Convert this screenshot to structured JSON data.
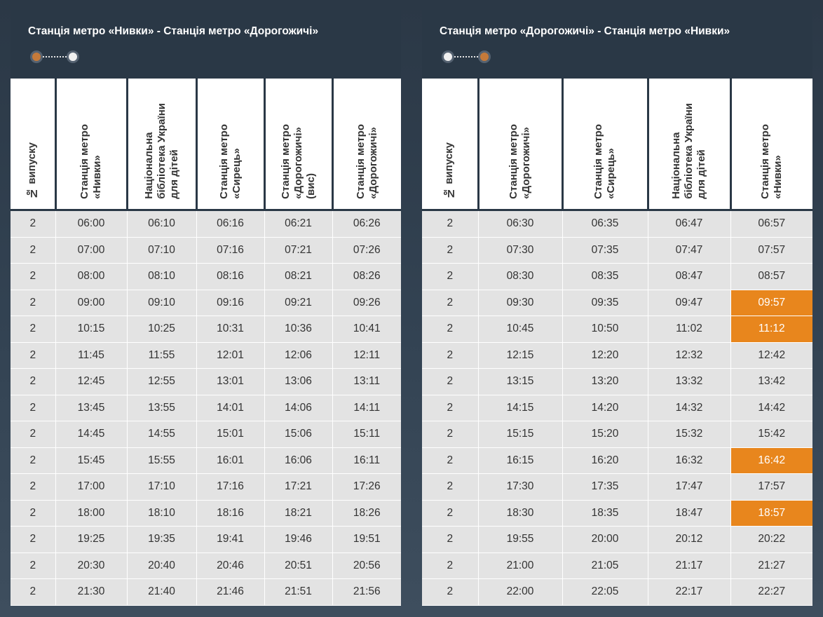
{
  "tables": [
    {
      "title": "Станція метро «Нивки» - Станція метро «Дорогожичі»",
      "headers": [
        "№ випуску",
        "Станція метро\n«Нивки»",
        "Національна\nбібліотека України\nдля дітей",
        "Станція метро\n«Сирець»",
        "Станція метро\n«Дорогожичі»\n(вис)",
        "Станція метро\n«Дорогожичі»"
      ],
      "rows": [
        [
          "2",
          "06:00",
          "06:10",
          "06:16",
          "06:21",
          "06:26"
        ],
        [
          "2",
          "07:00",
          "07:10",
          "07:16",
          "07:21",
          "07:26"
        ],
        [
          "2",
          "08:00",
          "08:10",
          "08:16",
          "08:21",
          "08:26"
        ],
        [
          "2",
          "09:00",
          "09:10",
          "09:16",
          "09:21",
          "09:26"
        ],
        [
          "2",
          "10:15",
          "10:25",
          "10:31",
          "10:36",
          "10:41"
        ],
        [
          "2",
          "11:45",
          "11:55",
          "12:01",
          "12:06",
          "12:11"
        ],
        [
          "2",
          "12:45",
          "12:55",
          "13:01",
          "13:06",
          "13:11"
        ],
        [
          "2",
          "13:45",
          "13:55",
          "14:01",
          "14:06",
          "14:11"
        ],
        [
          "2",
          "14:45",
          "14:55",
          "15:01",
          "15:06",
          "15:11"
        ],
        [
          "2",
          "15:45",
          "15:55",
          "16:01",
          "16:06",
          "16:11"
        ],
        [
          "2",
          "17:00",
          "17:10",
          "17:16",
          "17:21",
          "17:26"
        ],
        [
          "2",
          "18:00",
          "18:10",
          "18:16",
          "18:21",
          "18:26"
        ],
        [
          "2",
          "19:25",
          "19:35",
          "19:41",
          "19:46",
          "19:51"
        ],
        [
          "2",
          "20:30",
          "20:40",
          "20:46",
          "20:51",
          "20:56"
        ],
        [
          "2",
          "21:30",
          "21:40",
          "21:46",
          "21:51",
          "21:56"
        ]
      ],
      "highlighted": []
    },
    {
      "title": "Станція метро «Дорогожичі» - Станція метро «Нивки»",
      "headers": [
        "№ випуску",
        "Станція метро\n«Дорогожичі»",
        "Станція метро\n«Сирець»",
        "Національна\nбібліотека України\nдля дітей",
        "Станція метро\n«Нивки»"
      ],
      "rows": [
        [
          "2",
          "06:30",
          "06:35",
          "06:47",
          "06:57"
        ],
        [
          "2",
          "07:30",
          "07:35",
          "07:47",
          "07:57"
        ],
        [
          "2",
          "08:30",
          "08:35",
          "08:47",
          "08:57"
        ],
        [
          "2",
          "09:30",
          "09:35",
          "09:47",
          "09:57"
        ],
        [
          "2",
          "10:45",
          "10:50",
          "11:02",
          "11:12"
        ],
        [
          "2",
          "12:15",
          "12:20",
          "12:32",
          "12:42"
        ],
        [
          "2",
          "13:15",
          "13:20",
          "13:32",
          "13:42"
        ],
        [
          "2",
          "14:15",
          "14:20",
          "14:32",
          "14:42"
        ],
        [
          "2",
          "15:15",
          "15:20",
          "15:32",
          "15:42"
        ],
        [
          "2",
          "16:15",
          "16:20",
          "16:32",
          "16:42"
        ],
        [
          "2",
          "17:30",
          "17:35",
          "17:47",
          "17:57"
        ],
        [
          "2",
          "18:30",
          "18:35",
          "18:47",
          "18:57"
        ],
        [
          "2",
          "19:55",
          "20:00",
          "20:12",
          "20:22"
        ],
        [
          "2",
          "21:00",
          "21:05",
          "21:17",
          "21:27"
        ],
        [
          "2",
          "22:00",
          "22:05",
          "22:17",
          "22:27"
        ]
      ],
      "highlighted": [
        [
          3,
          4
        ],
        [
          4,
          4
        ],
        [
          9,
          4
        ],
        [
          11,
          4
        ]
      ]
    }
  ],
  "colors": {
    "header_bg": "#2a3846",
    "row_bg": "#e3e3e3",
    "highlight": "#e8861d",
    "route_dot_accent": "#c57a3a"
  }
}
